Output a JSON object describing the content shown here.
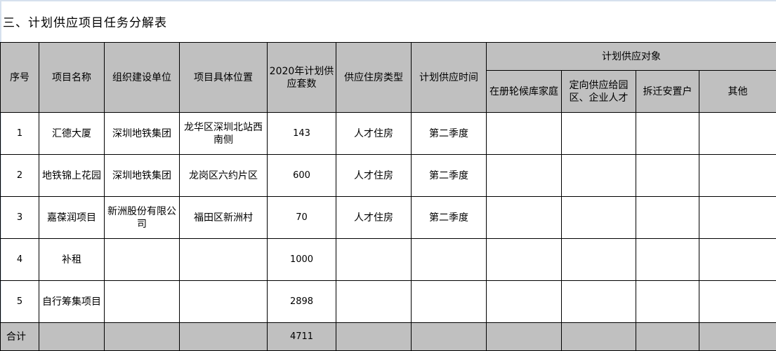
{
  "title": "三、计划供应项目任务分解表",
  "colors": {
    "header_bg": "#c0c0c0",
    "border": "#000000"
  },
  "headers": {
    "seq": "序号",
    "name": "项目名称",
    "org": "组织建设单位",
    "location": "项目具体位置",
    "count": "2020年计划供应套数",
    "type": "供应住房类型",
    "time": "计划供应时间",
    "targets_group": "计划供应对象",
    "targets": [
      "在册轮候库家庭",
      "定向供应给园区、企业人才",
      "拆迁安置户",
      "其他"
    ]
  },
  "rows": [
    {
      "seq": "1",
      "name": "汇德大厦",
      "org": "深圳地铁集团",
      "location": "龙华区深圳北站西南侧",
      "count": "143",
      "type": "人才住房",
      "time": "第二季度"
    },
    {
      "seq": "2",
      "name": "地铁锦上花园",
      "org": "深圳地铁集团",
      "location": "龙岗区六约片区",
      "count": "600",
      "type": "人才住房",
      "time": "第二季度"
    },
    {
      "seq": "3",
      "name": "嘉葆润项目",
      "org": "新洲股份有限公司",
      "location": "福田区新洲村",
      "count": "70",
      "type": "人才住房",
      "time": "第二季度"
    },
    {
      "seq": "4",
      "name": "补租",
      "org": "",
      "location": "",
      "count": "1000",
      "type": "",
      "time": ""
    },
    {
      "seq": "5",
      "name": "自行筹集项目",
      "org": "",
      "location": "",
      "count": "2898",
      "type": "",
      "time": ""
    }
  ],
  "total": {
    "label": "合计",
    "count": "4711"
  }
}
